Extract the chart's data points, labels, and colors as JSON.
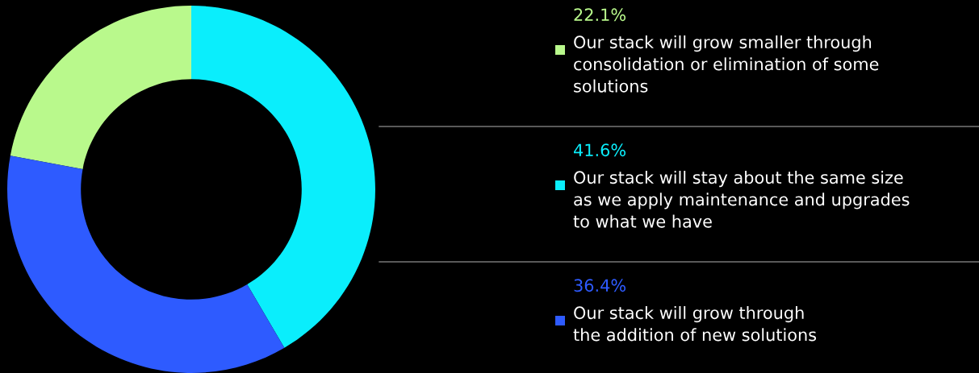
{
  "chart_data": {
    "type": "donut",
    "categories": [
      "Our stack will grow smaller through\nconsolidation or elimination of some\nsolutions",
      "Our stack will stay about the same size\nas we apply maintenance and upgrades\nto what we have",
      "Our stack will grow through\nthe addition of new solutions"
    ],
    "values": [
      22.1,
      41.6,
      36.4
    ],
    "value_labels": [
      "22.1%",
      "41.6%",
      "36.4%"
    ],
    "colors": [
      "#b9f98c",
      "#0aeefc",
      "#2e5bff"
    ],
    "legend": "right"
  }
}
